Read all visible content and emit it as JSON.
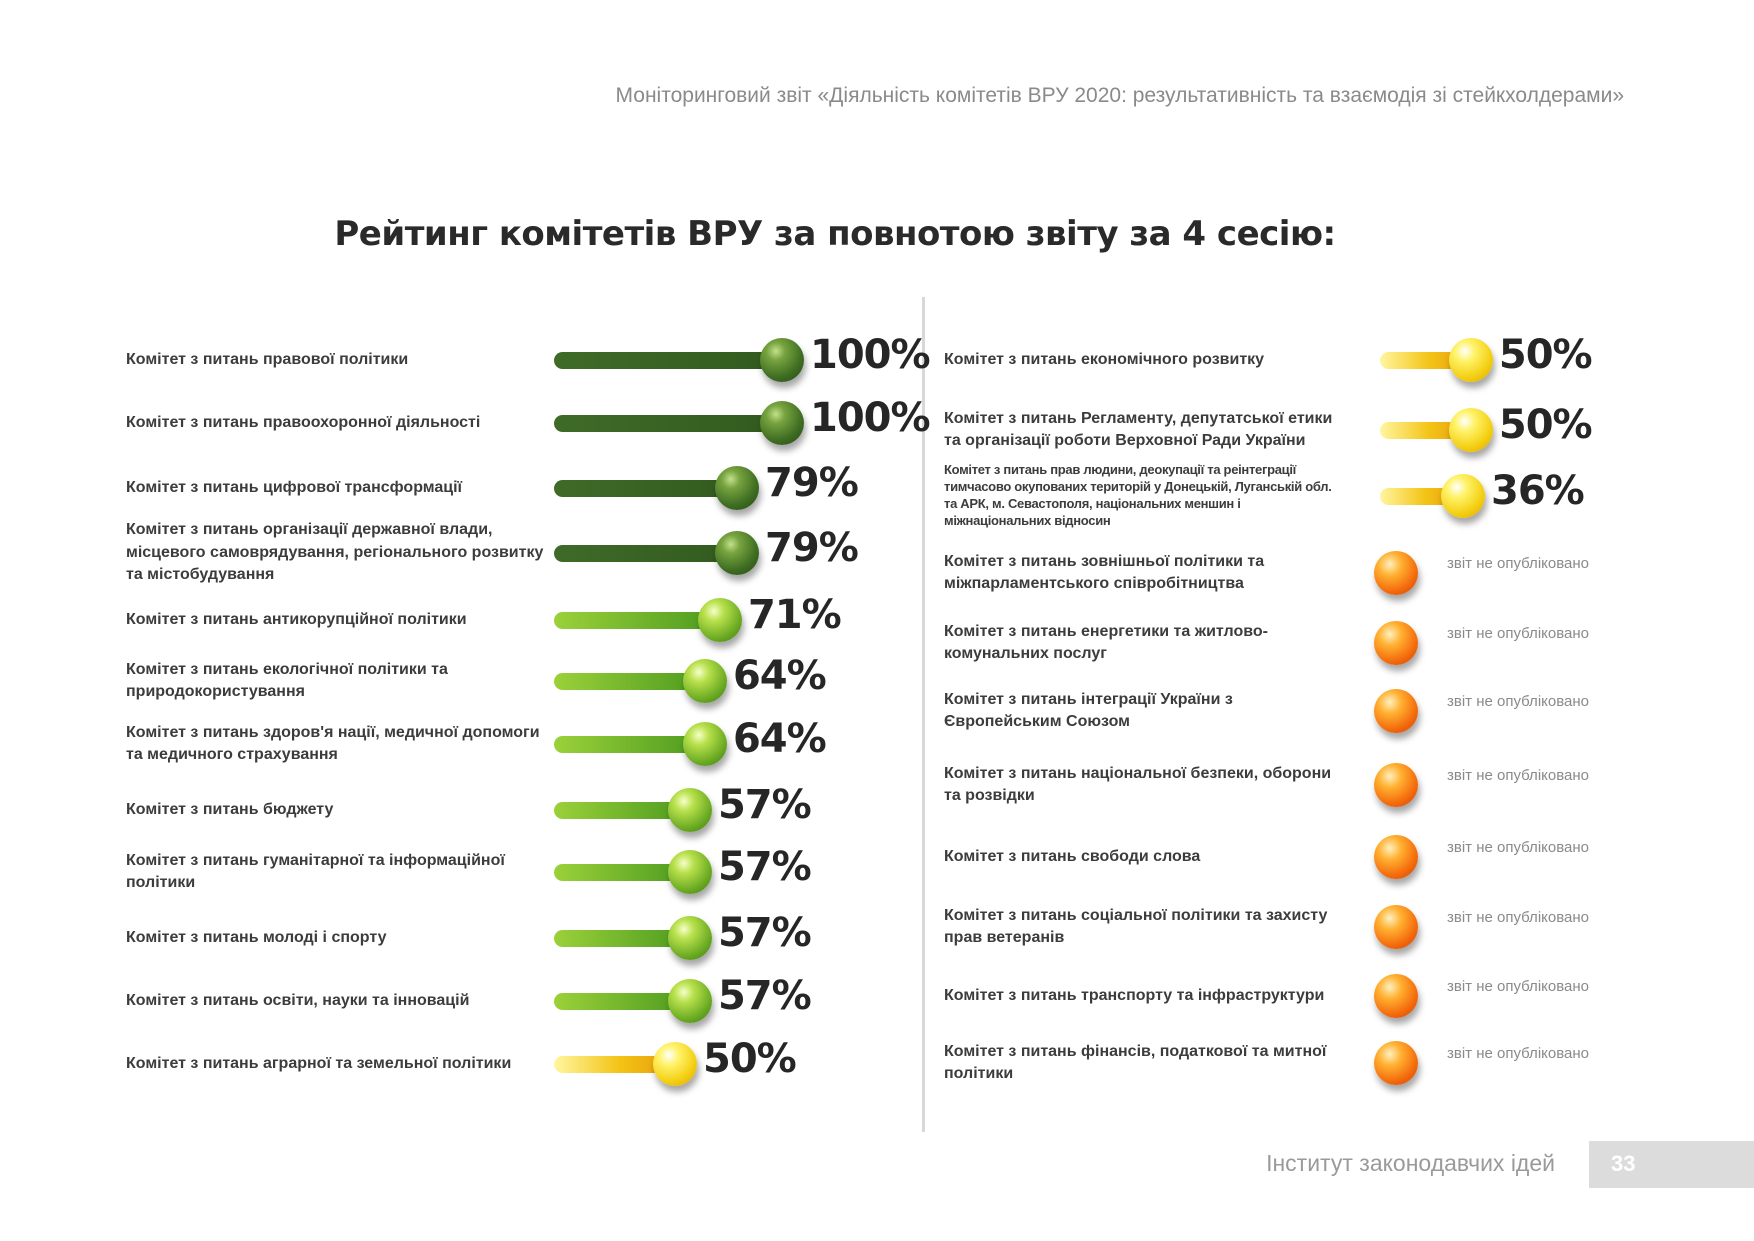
{
  "header": {
    "running_title": "Моніторинговий звіт «Діяльність комітетів ВРУ 2020: результативність та взаємодія зі стейкхолдерами»"
  },
  "title": "Рейтинг комітетів ВРУ за повнотою звіту за 4 сесію:",
  "colors": {
    "dark_green": "#325a1f",
    "light_green": "#6aaa22",
    "yellow": "#f3c314",
    "orange": "#f46a0c"
  },
  "left_column": [
    {
      "label": "Комітет з питань правової політики",
      "percent": 100,
      "value_text": "100%",
      "color": "dark_green"
    },
    {
      "label": "Комітет з питань правоохоронної діяльності",
      "percent": 100,
      "value_text": "100%",
      "color": "dark_green"
    },
    {
      "label": "Комітет з питань цифрової трансформації",
      "percent": 79,
      "value_text": "79%",
      "color": "dark_green"
    },
    {
      "label": "Комітет з питань організації державної влади, місцевого самоврядування, регіонального розвитку та містобудування",
      "percent": 79,
      "value_text": "79%",
      "color": "dark_green"
    },
    {
      "label": "Комітет з питань антикорупційної політики",
      "percent": 71,
      "value_text": "71%",
      "color": "light_green"
    },
    {
      "label": "Комітет з питань екологічної політики та природокористування",
      "percent": 64,
      "value_text": "64%",
      "color": "light_green"
    },
    {
      "label": "Комітет з питань здоров'я нації, медичної допомоги та медичного страхування",
      "percent": 64,
      "value_text": "64%",
      "color": "light_green"
    },
    {
      "label": "Комітет з питань бюджету",
      "percent": 57,
      "value_text": "57%",
      "color": "light_green"
    },
    {
      "label": "Комітет з питань гуманітарної та інформаційної політики",
      "percent": 57,
      "value_text": "57%",
      "color": "light_green"
    },
    {
      "label": "Комітет з питань молоді і спорту",
      "percent": 57,
      "value_text": "57%",
      "color": "light_green"
    },
    {
      "label": "Комітет з питань освіти, науки та інновацій",
      "percent": 57,
      "value_text": "57%",
      "color": "light_green"
    },
    {
      "label": "Комітет з питань аграрної та земельної політики",
      "percent": 50,
      "value_text": "50%",
      "color": "yellow"
    }
  ],
  "right_column": [
    {
      "label": "Комітет з питань економічного розвитку",
      "percent": 50,
      "value_text": "50%",
      "color": "yellow"
    },
    {
      "label": "Комітет з питань Регламенту, депутатської етики та організації роботи Верховної Ради України",
      "percent": 50,
      "value_text": "50%",
      "color": "yellow"
    },
    {
      "label": "Комітет з питань прав людини, деокупації та реінтеграції тимчасово окупованих територій у Донецькій, Луганській обл. та АРК, м. Севастополя, національних меншин і міжнаціональних відносин",
      "percent": 36,
      "value_text": "36%",
      "color": "yellow",
      "small": true
    },
    {
      "label": "Комітет з питань зовнішньої політики та міжпарламентського співробітництва",
      "status": "звіт не опубліковано",
      "color": "orange"
    },
    {
      "label": "Комітет з питань енергетики та житлово-комунальних послуг",
      "status": "звіт не опубліковано",
      "color": "orange"
    },
    {
      "label": "Комітет з питань інтеграції України з Європейським Союзом",
      "status": "звіт не опубліковано",
      "color": "orange"
    },
    {
      "label": "Комітет з питань національної безпеки, оборони та розвідки",
      "status": "звіт не опубліковано",
      "color": "orange"
    },
    {
      "label": "Комітет з питань свободи слова",
      "status": "звіт не опубліковано",
      "color": "orange"
    },
    {
      "label": "Комітет з питань соціальної політики та захисту прав ветеранів",
      "status": "звіт не опубліковано",
      "color": "orange"
    },
    {
      "label": "Комітет з питань транспорту та інфраструктури",
      "status": "звіт не опубліковано",
      "color": "orange"
    },
    {
      "label": "Комітет з питань фінансів, податкової та митної політики",
      "status": "звіт не опубліковано",
      "color": "orange"
    }
  ],
  "footer": {
    "organization": "Інститут законодавчих ідей",
    "page_number": "33"
  }
}
